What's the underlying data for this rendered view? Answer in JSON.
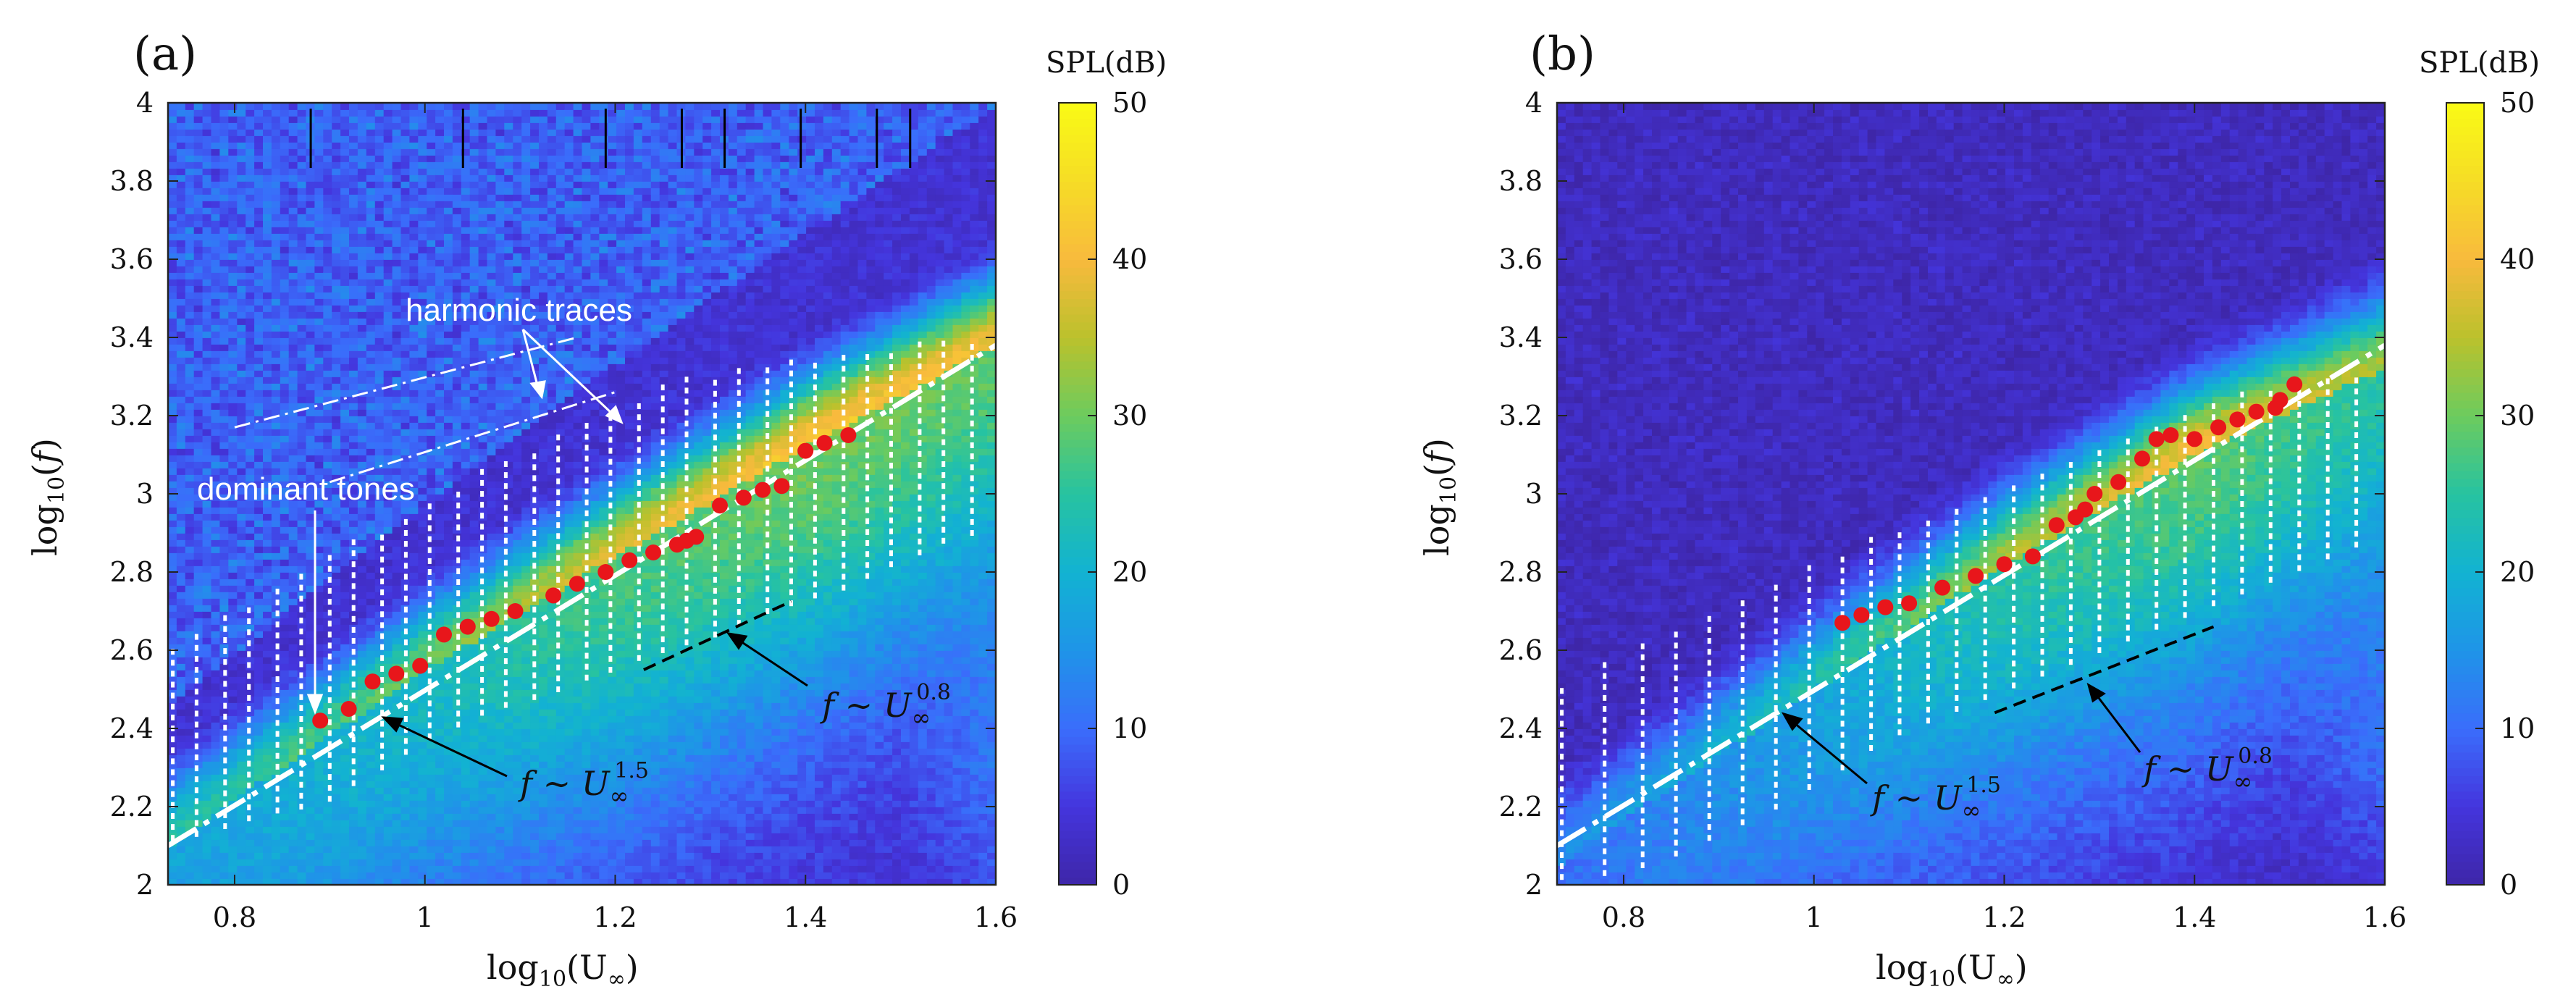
{
  "colors": {
    "cmap": [
      "#3e26a8",
      "#4435dd",
      "#3a6dfb",
      "#1f94e8",
      "#12b2d2",
      "#27c3a1",
      "#6ccb5e",
      "#bbc12c",
      "#f8ba3d",
      "#f6dc26",
      "#f9fb15"
    ],
    "dominant": "#e8161b",
    "harmonic": "#ffffff",
    "scaling_line": "#ffffff",
    "slope08_line": "#000000"
  },
  "chart_data": [
    {
      "type": "heatmap",
      "panel_label": "(a)",
      "xlabel": "log10(U∞)",
      "ylabel": "log10(f)",
      "xlim": [
        0.73,
        1.6
      ],
      "ylim": [
        2,
        4
      ],
      "xticks": [
        "0.8",
        "1",
        "1.2",
        "1.4",
        "1.6"
      ],
      "xtick_values": [
        0.8,
        1.0,
        1.2,
        1.4,
        1.6
      ],
      "yticks": [
        "2",
        "2.2",
        "2.4",
        "2.6",
        "2.8",
        "3",
        "3.2",
        "3.4",
        "3.6",
        "3.8",
        "4"
      ],
      "ytick_values": [
        2.0,
        2.2,
        2.4,
        2.6,
        2.8,
        3.0,
        3.2,
        3.4,
        3.6,
        3.8,
        4.0
      ],
      "colorbar": {
        "title": "SPL(dB)",
        "range": [
          0,
          50
        ],
        "ticks": [
          "0",
          "10",
          "20",
          "30",
          "40",
          "50"
        ],
        "tick_values": [
          0,
          10,
          20,
          30,
          40,
          50
        ]
      },
      "background": {
        "noise_floor_db": 4,
        "band_centers": [
          0.73,
          1.0,
          1.2,
          1.4,
          1.6
        ],
        "band_log_f": [
          2.1,
          2.55,
          2.84,
          3.12,
          3.38
        ],
        "band_peak_db": [
          24,
          30,
          38,
          42,
          40
        ],
        "upper_region_db": 9
      },
      "dominant_tones": {
        "x": [
          0.89,
          0.92,
          0.945,
          0.97,
          0.995,
          1.02,
          1.045,
          1.07,
          1.095,
          1.135,
          1.16,
          1.19,
          1.215,
          1.24,
          1.265,
          1.275,
          1.285,
          1.31,
          1.335,
          1.355,
          1.375,
          1.4,
          1.42,
          1.445
        ],
        "y": [
          2.42,
          2.45,
          2.52,
          2.54,
          2.56,
          2.64,
          2.66,
          2.68,
          2.7,
          2.74,
          2.77,
          2.8,
          2.83,
          2.85,
          2.87,
          2.88,
          2.89,
          2.97,
          2.99,
          3.01,
          3.02,
          3.11,
          3.13,
          3.15
        ]
      },
      "harmonic_columns": {
        "x": [
          0.735,
          0.76,
          0.79,
          0.815,
          0.845,
          0.87,
          0.9,
          0.925,
          0.955,
          0.98,
          1.005,
          1.035,
          1.06,
          1.085,
          1.115,
          1.14,
          1.17,
          1.195,
          1.225,
          1.25,
          1.275,
          1.305,
          1.33,
          1.36,
          1.385,
          1.41,
          1.44,
          1.465,
          1.49,
          1.52,
          1.545,
          1.575
        ],
        "y_min": [
          2.12,
          2.13,
          2.15,
          2.17,
          2.19,
          2.2,
          2.22,
          2.26,
          2.3,
          2.34,
          2.38,
          2.41,
          2.44,
          2.46,
          2.48,
          2.5,
          2.53,
          2.55,
          2.58,
          2.6,
          2.62,
          2.64,
          2.67,
          2.7,
          2.72,
          2.74,
          2.76,
          2.79,
          2.82,
          2.85,
          2.88,
          2.9
        ],
        "y_max": [
          2.62,
          2.65,
          2.69,
          2.73,
          2.77,
          2.81,
          2.85,
          2.88,
          2.91,
          2.95,
          2.99,
          3.02,
          3.06,
          3.09,
          3.12,
          3.15,
          3.19,
          3.22,
          3.25,
          3.28,
          3.3,
          3.31,
          3.32,
          3.33,
          3.34,
          3.35,
          3.36,
          3.37,
          3.38,
          3.39,
          3.39,
          3.4
        ],
        "step": 0.028
      },
      "scaling_line": {
        "x": [
          0.73,
          1.6
        ],
        "y": [
          2.1,
          3.38
        ],
        "label": "f ∼ U∞^1.5"
      },
      "slope08_line": {
        "x": [
          1.23,
          1.385
        ],
        "y": [
          2.55,
          2.725
        ],
        "label": "f ∼ U∞^0.8"
      },
      "harmonic_trace_lines": [
        {
          "x": [
            0.8,
            1.16
          ],
          "y": [
            3.17,
            3.4
          ]
        },
        {
          "x": [
            0.9,
            1.2
          ],
          "y": [
            3.03,
            3.26
          ]
        }
      ],
      "tick_marks_top": [
        0.88,
        1.04,
        1.19,
        1.27,
        1.315,
        1.395,
        1.475,
        1.51
      ],
      "annotations": {
        "harmonic_traces": "harmonic traces",
        "dominant_tones": "dominant tones",
        "law_15": "f ∼ U",
        "law_15_sub": "∞",
        "law_15_sup": "1.5",
        "law_08": "f ∼ U",
        "law_08_sub": "∞",
        "law_08_sup": "0.8"
      }
    },
    {
      "type": "heatmap",
      "panel_label": "(b)",
      "xlabel": "log10(U∞)",
      "ylabel": "log10(f)",
      "xlim": [
        0.73,
        1.6
      ],
      "ylim": [
        2,
        4
      ],
      "xticks": [
        "0.8",
        "1",
        "1.2",
        "1.4",
        "1.6"
      ],
      "xtick_values": [
        0.8,
        1.0,
        1.2,
        1.4,
        1.6
      ],
      "yticks": [
        "2",
        "2.2",
        "2.4",
        "2.6",
        "2.8",
        "3",
        "3.2",
        "3.4",
        "3.6",
        "3.8",
        "4"
      ],
      "ytick_values": [
        2.0,
        2.2,
        2.4,
        2.6,
        2.8,
        3.0,
        3.2,
        3.4,
        3.6,
        3.8,
        4.0
      ],
      "colorbar": {
        "title": "SPL(dB)",
        "range": [
          0,
          50
        ],
        "ticks": [
          "0",
          "10",
          "20",
          "30",
          "40",
          "50"
        ],
        "tick_values": [
          0,
          10,
          20,
          30,
          40,
          50
        ]
      },
      "background": {
        "noise_floor_db": 2,
        "band_centers": [
          0.73,
          1.0,
          1.2,
          1.4,
          1.6
        ],
        "band_log_f": [
          2.05,
          2.5,
          2.82,
          3.1,
          3.32
        ],
        "band_peak_db": [
          14,
          24,
          34,
          40,
          34
        ],
        "upper_region_db": 2
      },
      "dominant_tones": {
        "x": [
          1.03,
          1.05,
          1.075,
          1.1,
          1.135,
          1.17,
          1.2,
          1.23,
          1.255,
          1.275,
          1.285,
          1.295,
          1.32,
          1.345,
          1.36,
          1.375,
          1.4,
          1.425,
          1.445,
          1.465,
          1.485,
          1.49,
          1.505
        ],
        "y": [
          2.67,
          2.69,
          2.71,
          2.72,
          2.76,
          2.79,
          2.82,
          2.84,
          2.92,
          2.94,
          2.96,
          3.0,
          3.03,
          3.09,
          3.14,
          3.15,
          3.14,
          3.17,
          3.19,
          3.21,
          3.22,
          3.24,
          3.28
        ]
      },
      "harmonic_columns": {
        "x": [
          0.735,
          0.78,
          0.82,
          0.855,
          0.89,
          0.925,
          0.96,
          0.995,
          1.03,
          1.06,
          1.09,
          1.12,
          1.15,
          1.18,
          1.21,
          1.24,
          1.27,
          1.3,
          1.33,
          1.36,
          1.39,
          1.42,
          1.45,
          1.48,
          1.51,
          1.54,
          1.57
        ],
        "y_min": [
          2.02,
          2.03,
          2.05,
          2.08,
          2.12,
          2.16,
          2.2,
          2.25,
          2.3,
          2.35,
          2.39,
          2.42,
          2.45,
          2.48,
          2.51,
          2.54,
          2.57,
          2.6,
          2.63,
          2.66,
          2.69,
          2.72,
          2.75,
          2.78,
          2.81,
          2.84,
          2.87
        ],
        "y_max": [
          2.52,
          2.58,
          2.62,
          2.66,
          2.7,
          2.74,
          2.78,
          2.82,
          2.86,
          2.89,
          2.92,
          2.95,
          2.98,
          3.01,
          3.04,
          3.07,
          3.1,
          3.13,
          3.16,
          3.19,
          3.22,
          3.24,
          3.26,
          3.27,
          3.28,
          3.29,
          3.3
        ],
        "step": 0.028
      },
      "scaling_line": {
        "x": [
          0.73,
          1.6
        ],
        "y": [
          2.1,
          3.38
        ],
        "label": "f ∼ U∞^1.5"
      },
      "slope08_line": {
        "x": [
          1.19,
          1.42
        ],
        "y": [
          2.44,
          2.66
        ],
        "label": "f ∼ U∞^0.8"
      },
      "annotations": {
        "law_15": "f ∼ U",
        "law_15_sub": "∞",
        "law_15_sup": "1.5",
        "law_08": "f ∼ U",
        "law_08_sub": "∞",
        "law_08_sup": "0.8"
      }
    }
  ]
}
